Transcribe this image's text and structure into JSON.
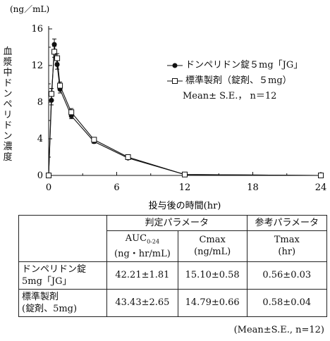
{
  "chart_data": {
    "type": "line",
    "unit_label": "(ng／mL)",
    "ylabel": "血漿中ドンペリドン濃度",
    "xlabel": "投与後の時間(hr)",
    "xlim": [
      0,
      24
    ],
    "ylim": [
      0,
      16
    ],
    "x_ticks": [
      0,
      6,
      12,
      18,
      24
    ],
    "y_ticks": [
      0,
      4,
      8,
      12,
      16
    ],
    "legend_position": "top-right",
    "legend_note": "Mean± S.E.， n＝12",
    "series": [
      {
        "name": "ドンペリドン錠５mg「JG」",
        "marker": "filled-circle",
        "x": [
          0,
          0.25,
          0.5,
          0.75,
          1,
          2,
          4,
          7,
          12,
          24
        ],
        "y": [
          0,
          8.2,
          14.3,
          12.1,
          9.4,
          6.5,
          3.7,
          1.9,
          0.1,
          0
        ],
        "err": [
          0,
          0.5,
          0.6,
          0.5,
          0.4,
          0.3,
          0.2,
          0.1,
          0,
          0
        ]
      },
      {
        "name": "標準製剤（錠剤、５mg）",
        "marker": "open-square",
        "x": [
          0,
          0.25,
          0.5,
          0.75,
          1,
          2,
          4,
          7,
          12,
          24
        ],
        "y": [
          0,
          8.9,
          13.5,
          12.8,
          9.8,
          6.9,
          3.9,
          2.0,
          0.1,
          0
        ],
        "err": [
          0,
          0.6,
          0.6,
          0.5,
          0.4,
          0.4,
          0.2,
          0.1,
          0,
          0
        ]
      }
    ]
  },
  "table": {
    "group_judge": "判定パラメータ",
    "group_ref": "参考パラメータ",
    "auc_label": "AUC",
    "auc_sub": "0-24",
    "auc_unit": "(ng・hr/mL)",
    "cmax_label": "Cmax",
    "cmax_unit": "(ng/mL)",
    "tmax_label": "Tmax",
    "tmax_unit": "(hr)",
    "rows": [
      {
        "name_line1": "ドンペリドン錠",
        "name_line2": "5mg「JG」",
        "auc": "42.21±1.81",
        "cmax": "15.10±0.58",
        "tmax": "0.56±0.03"
      },
      {
        "name_line1": "標準製剤",
        "name_line2": "(錠剤、5mg)",
        "auc": "43.43±2.65",
        "cmax": "14.79±0.66",
        "tmax": "0.58±0.04"
      }
    ],
    "footnote": "(Mean±S.E., n=12)"
  }
}
